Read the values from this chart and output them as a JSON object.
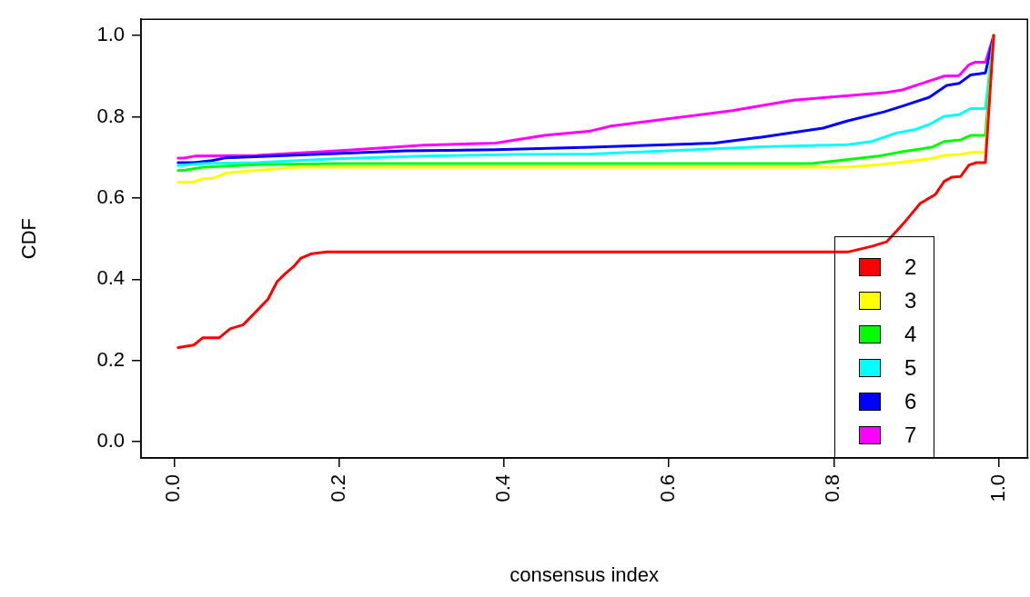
{
  "chart_data": {
    "type": "line",
    "xlabel": "consensus index",
    "ylabel": "CDF",
    "xlim": [
      -0.04,
      1.035
    ],
    "ylim": [
      -0.04,
      1.04
    ],
    "xticks": [
      {
        "value": 0,
        "label": "0.0"
      },
      {
        "value": 0.2,
        "label": "0.2"
      },
      {
        "value": 0.4,
        "label": "0.4"
      },
      {
        "value": 0.6,
        "label": "0.6"
      },
      {
        "value": 0.8,
        "label": "0.8"
      },
      {
        "value": 1,
        "label": "1.0"
      }
    ],
    "yticks": [
      {
        "value": 0,
        "label": "0.0"
      },
      {
        "value": 0.2,
        "label": "0.2"
      },
      {
        "value": 0.4,
        "label": "0.4"
      },
      {
        "value": 0.6,
        "label": "0.6"
      },
      {
        "value": 0.8,
        "label": "0.8"
      },
      {
        "value": 1,
        "label": "1.0"
      }
    ],
    "legend": "bottom right",
    "marker": "none",
    "line_style": "solid",
    "series": [
      {
        "name": "2",
        "color": "#ff0000",
        "x": [
          0.005,
          0.024,
          0.035,
          0.055,
          0.068,
          0.084,
          0.095,
          0.114,
          0.125,
          0.134,
          0.145,
          0.154,
          0.167,
          0.185,
          0.817,
          0.846,
          0.864,
          0.876,
          0.887,
          0.905,
          0.923,
          0.934,
          0.943,
          0.954,
          0.964,
          0.973,
          0.984,
          0.994
        ],
        "values": [
          0.232,
          0.238,
          0.256,
          0.256,
          0.278,
          0.288,
          0.311,
          0.351,
          0.394,
          0.412,
          0.431,
          0.452,
          0.463,
          0.467,
          0.467,
          0.481,
          0.492,
          0.518,
          0.543,
          0.587,
          0.608,
          0.641,
          0.651,
          0.653,
          0.681,
          0.687,
          0.687,
          1.0
        ]
      },
      {
        "name": "3",
        "color": "#ffff00",
        "x": [
          0.005,
          0.024,
          0.036,
          0.047,
          0.063,
          0.1,
          0.15,
          0.817,
          0.861,
          0.916,
          0.934,
          0.954,
          0.967,
          0.984,
          0.994
        ],
        "values": [
          0.639,
          0.639,
          0.648,
          0.648,
          0.661,
          0.668,
          0.676,
          0.676,
          0.683,
          0.696,
          0.705,
          0.707,
          0.712,
          0.712,
          1.0
        ]
      },
      {
        "name": "4",
        "color": "#00ff00",
        "x": [
          0.005,
          0.012,
          0.035,
          0.1,
          0.2,
          0.773,
          0.806,
          0.854,
          0.883,
          0.919,
          0.934,
          0.954,
          0.966,
          0.984,
          0.994
        ],
        "values": [
          0.668,
          0.668,
          0.676,
          0.682,
          0.685,
          0.685,
          0.692,
          0.703,
          0.714,
          0.725,
          0.739,
          0.743,
          0.754,
          0.754,
          1.0
        ]
      },
      {
        "name": "5",
        "color": "#00ffff",
        "x": [
          0.005,
          0.035,
          0.1,
          0.189,
          0.303,
          0.413,
          0.505,
          0.714,
          0.817,
          0.846,
          0.876,
          0.898,
          0.916,
          0.934,
          0.952,
          0.966,
          0.984,
          0.994
        ],
        "values": [
          0.68,
          0.685,
          0.687,
          0.696,
          0.703,
          0.707,
          0.708,
          0.726,
          0.731,
          0.739,
          0.76,
          0.768,
          0.781,
          0.801,
          0.805,
          0.82,
          0.82,
          1.0
        ]
      },
      {
        "name": "6",
        "color": "#0000ff",
        "x": [
          0.005,
          0.024,
          0.046,
          0.063,
          0.118,
          0.189,
          0.28,
          0.39,
          0.505,
          0.655,
          0.714,
          0.787,
          0.817,
          0.861,
          0.883,
          0.916,
          0.937,
          0.952,
          0.966,
          0.984,
          0.994
        ],
        "values": [
          0.687,
          0.687,
          0.692,
          0.699,
          0.703,
          0.709,
          0.716,
          0.719,
          0.725,
          0.735,
          0.75,
          0.772,
          0.79,
          0.812,
          0.826,
          0.848,
          0.877,
          0.882,
          0.903,
          0.908,
          1.0
        ]
      },
      {
        "name": "7",
        "color": "#ff00ff",
        "x": [
          0.005,
          0.012,
          0.025,
          0.1,
          0.207,
          0.303,
          0.39,
          0.449,
          0.505,
          0.53,
          0.603,
          0.677,
          0.751,
          0.861,
          0.883,
          0.916,
          0.934,
          0.952,
          0.964,
          0.971,
          0.984,
          0.994
        ],
        "values": [
          0.698,
          0.698,
          0.703,
          0.705,
          0.717,
          0.73,
          0.735,
          0.754,
          0.765,
          0.777,
          0.796,
          0.815,
          0.841,
          0.859,
          0.866,
          0.888,
          0.9,
          0.901,
          0.928,
          0.934,
          0.934,
          1.0
        ]
      }
    ]
  }
}
